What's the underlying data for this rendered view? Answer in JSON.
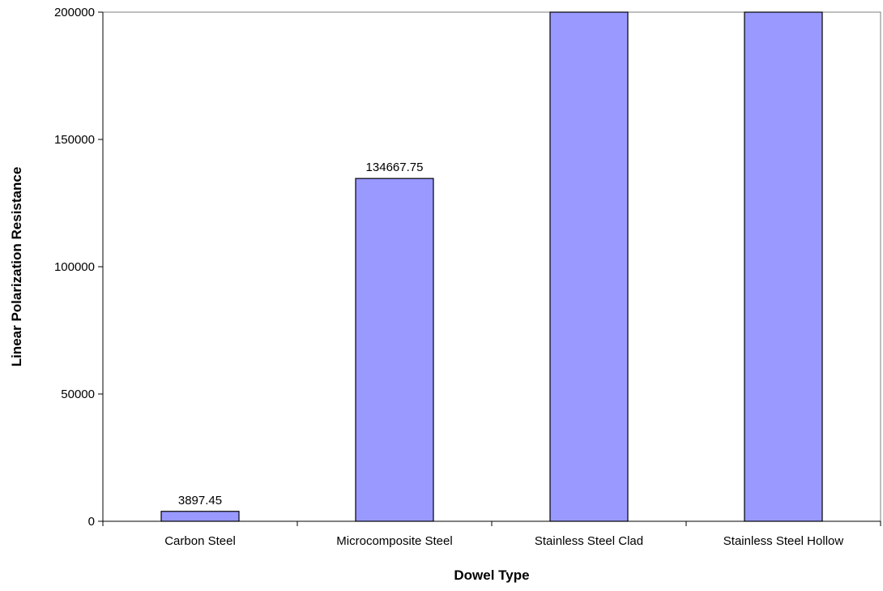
{
  "chart_data": {
    "type": "bar",
    "title": "",
    "xlabel": "Dowel Type",
    "ylabel": "Linear Polarization Resistance",
    "categories": [
      "Carbon Steel",
      "Microcomposite Steel",
      "Stainless Steel Clad",
      "Stainless Steel Hollow"
    ],
    "values": [
      3897.45,
      134667.75,
      200000,
      200000
    ],
    "data_labels": [
      "3897.45",
      "134667.75",
      "",
      ""
    ],
    "ylim": [
      0,
      200000
    ],
    "yticks": [
      0,
      50000,
      100000,
      150000,
      200000
    ],
    "grid": false,
    "legend": "none",
    "colors": {
      "bar": "#9999ff",
      "bar_edge": "#000000",
      "axis": "#000000"
    }
  }
}
